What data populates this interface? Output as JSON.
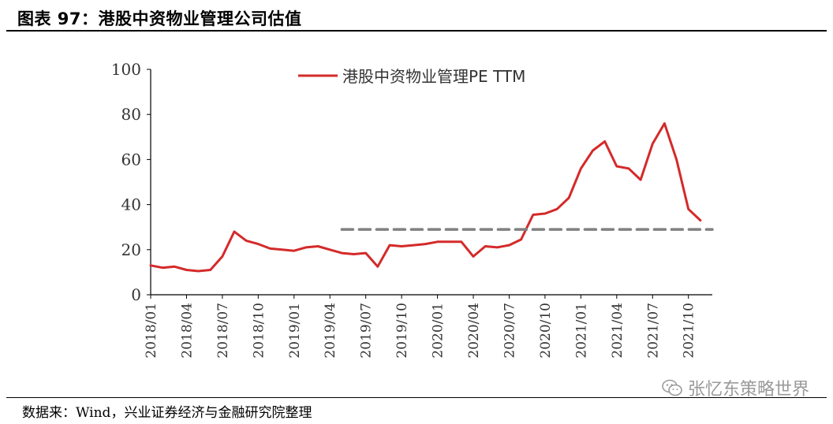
{
  "header": {
    "title": "图表 97：港股中资物业管理公司估值"
  },
  "footer": {
    "source": "数据来：Wind，兴业证券经济与金融研究院整理"
  },
  "watermark": {
    "text": "张忆东策略世界",
    "icon": "wechat-icon"
  },
  "colors": {
    "series": "#d42a2a",
    "reference": "#808080",
    "axis": "#000000"
  },
  "chart_data": {
    "type": "line",
    "title": "",
    "xlabel": "",
    "ylabel": "",
    "ylim": [
      0,
      100
    ],
    "yticks": [
      0,
      20,
      40,
      60,
      80,
      100
    ],
    "xticks": [
      "2018/01",
      "2018/04",
      "2018/07",
      "2018/10",
      "2019/01",
      "2019/04",
      "2019/07",
      "2019/10",
      "2020/01",
      "2020/04",
      "2020/07",
      "2020/10",
      "2021/01",
      "2021/04",
      "2021/07",
      "2021/10"
    ],
    "legend_position": "top-center",
    "grid": false,
    "series": [
      {
        "name": "港股中资物业管理PE TTM",
        "style": "solid",
        "x": [
          "2018/01",
          "2018/02",
          "2018/03",
          "2018/04",
          "2018/05",
          "2018/06",
          "2018/07",
          "2018/08",
          "2018/09",
          "2018/10",
          "2018/11",
          "2018/12",
          "2019/01",
          "2019/02",
          "2019/03",
          "2019/04",
          "2019/05",
          "2019/06",
          "2019/07",
          "2019/08",
          "2019/09",
          "2019/10",
          "2019/11",
          "2019/12",
          "2020/01",
          "2020/02",
          "2020/03",
          "2020/04",
          "2020/05",
          "2020/06",
          "2020/07",
          "2020/08",
          "2020/09",
          "2020/10",
          "2020/11",
          "2020/12",
          "2021/01",
          "2021/02",
          "2021/03",
          "2021/04",
          "2021/05",
          "2021/06",
          "2021/07",
          "2021/08",
          "2021/09",
          "2021/10",
          "2021/11"
        ],
        "values": [
          13,
          12,
          12.5,
          11,
          10.5,
          11,
          17,
          28,
          24,
          22.5,
          20.5,
          20,
          19.5,
          21,
          21.5,
          20,
          18.5,
          18,
          18.5,
          12.5,
          22,
          21.5,
          22,
          22.5,
          23.5,
          23.5,
          23.5,
          17,
          21.5,
          21,
          22,
          24.5,
          35.5,
          36,
          38,
          43,
          56,
          64,
          68,
          57,
          56,
          51,
          67,
          76,
          60,
          38,
          33
        ]
      },
      {
        "name": "",
        "style": "dashed",
        "x": [
          "2019/05",
          "2021/12"
        ],
        "values": [
          29,
          29
        ]
      }
    ]
  }
}
